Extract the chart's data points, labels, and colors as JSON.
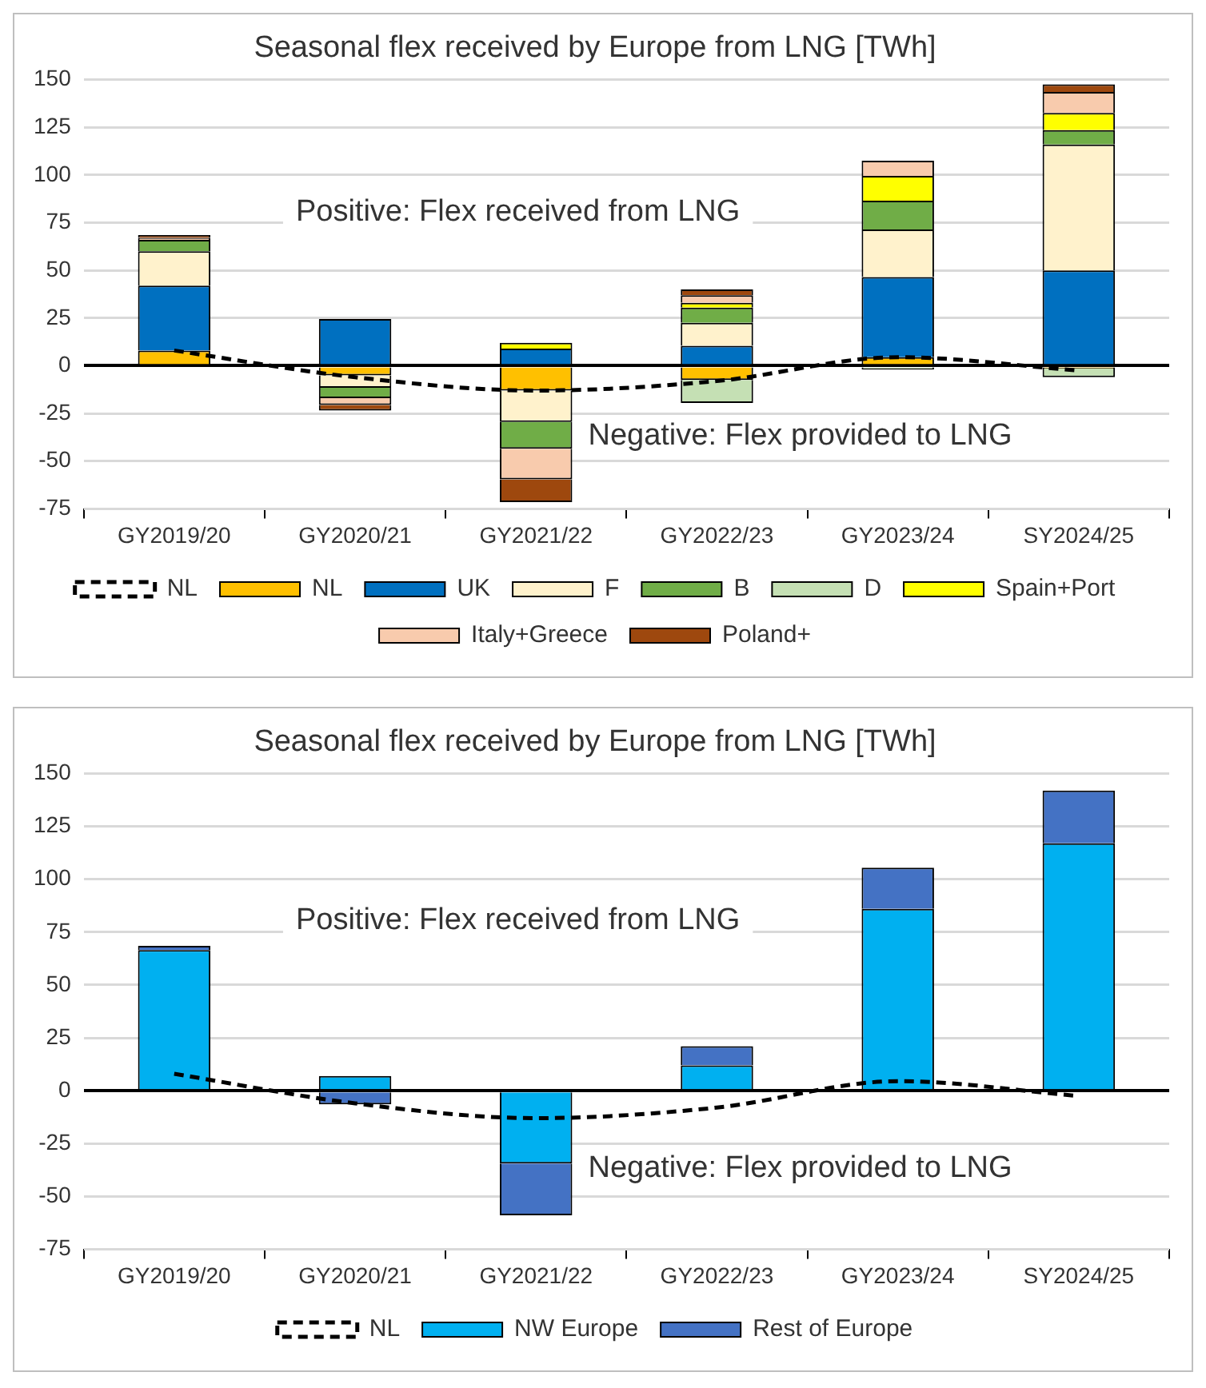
{
  "chart_data": [
    {
      "type": "bar",
      "title": "Seasonal flex received by Europe from LNG [TWh]",
      "stacked": true,
      "grid": "y",
      "legend": "bottom",
      "categories": [
        "GY2019/20",
        "GY2020/21",
        "GY2021/22",
        "GY2022/23",
        "GY2023/24",
        "SY2024/25"
      ],
      "ylim": [
        -75,
        150
      ],
      "yticks": [
        -75,
        -50,
        -25,
        0,
        25,
        50,
        75,
        100,
        125,
        150
      ],
      "series": [
        {
          "name": "NL",
          "color": "#ffc000",
          "values": [
            8,
            -5,
            -13,
            -7.5,
            4.5,
            -1.5
          ]
        },
        {
          "name": "UK",
          "color": "#0070c0",
          "values": [
            34,
            24.5,
            9,
            10.5,
            42,
            50
          ]
        },
        {
          "name": "F",
          "color": "#fff2cc",
          "values": [
            18,
            -6.5,
            -16.5,
            12,
            25,
            66
          ]
        },
        {
          "name": "B",
          "color": "#70ad47",
          "values": [
            6,
            -5.5,
            -14,
            8,
            15,
            7.5
          ]
        },
        {
          "name": "D",
          "color": "#c5e0b4",
          "values": [
            0,
            0,
            0,
            -12,
            -2,
            -4.5
          ]
        },
        {
          "name": "Spain+Port",
          "color": "#ffff00",
          "values": [
            0,
            0,
            3,
            2.5,
            13,
            9
          ]
        },
        {
          "name": "Italy+Greece",
          "color": "#f8cbad",
          "values": [
            1,
            -3.5,
            -16,
            4,
            8,
            11
          ]
        },
        {
          "name": "Poland+",
          "color": "#9e480e",
          "values": [
            1.5,
            -3,
            -12,
            3,
            0,
            4
          ]
        },
        {
          "name": "NL",
          "type": "line",
          "line_style": "dashed",
          "marker": "none",
          "color": "#000000",
          "values": [
            8,
            -6,
            -13,
            -8,
            4.5,
            -2.5
          ]
        }
      ],
      "annotations": [
        "Positive: Flex received from LNG",
        "Negative: Flex provided to LNG"
      ]
    },
    {
      "type": "bar",
      "title": "Seasonal flex received by Europe from LNG [TWh]",
      "stacked": true,
      "grid": "y",
      "legend": "bottom",
      "categories": [
        "GY2019/20",
        "GY2020/21",
        "GY2021/22",
        "GY2022/23",
        "GY2023/24",
        "SY2024/25"
      ],
      "ylim": [
        -75,
        150
      ],
      "yticks": [
        -75,
        -50,
        -25,
        0,
        25,
        50,
        75,
        100,
        125,
        150
      ],
      "series": [
        {
          "name": "NW Europe",
          "color": "#00b0f0",
          "values": [
            66.5,
            7,
            -34.5,
            12,
            86,
            117
          ]
        },
        {
          "name": "Rest of Europe",
          "color": "#4472c4",
          "values": [
            2,
            -6.5,
            -24.5,
            9,
            19.5,
            25
          ]
        },
        {
          "name": "NL",
          "type": "line",
          "line_style": "dashed",
          "marker": "none",
          "color": "#000000",
          "values": [
            8,
            -6,
            -13,
            -8,
            4.5,
            -2.5
          ]
        }
      ],
      "annotations": [
        "Positive: Flex received from LNG",
        "Negative: Flex provided to LNG"
      ]
    }
  ]
}
